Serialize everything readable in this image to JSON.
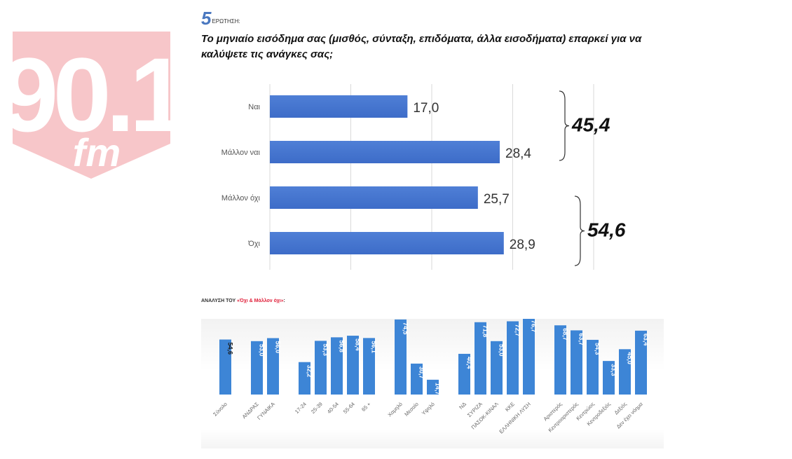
{
  "logo": {
    "number": "90.1",
    "suffix": "fm",
    "color": "#f7c6c9"
  },
  "question": {
    "number": "5",
    "label": "ΕΡΩΤΗΣΗ:",
    "title": "Το μηνιαίο εισόδημα σας (μισθός, σύνταξη, επιδόματα, άλλα εισοδήματα) επαρκεί για να καλύψετε τις ανάγκες σας;"
  },
  "subtitle": {
    "prefix": "ΑΝΑΛΥΣΗ ΤΟΥ ",
    "highlight": "«Όχι & Μάλλον όχι»",
    "suffix": ":"
  },
  "chart_data": [
    {
      "type": "bar",
      "orientation": "horizontal",
      "title": "Το μηνιαίο εισόδημα σας επαρκεί για να καλύψετε τις ανάγκες σας;",
      "categories": [
        "Ναι",
        "Μάλλον ναι",
        "Μάλλον όχι",
        "Όχι"
      ],
      "values": [
        17.0,
        28.4,
        25.7,
        28.9
      ],
      "value_labels": [
        "17,0",
        "28,4",
        "25,7",
        "28,9"
      ],
      "xlim": [
        0,
        40
      ],
      "gridlines": [
        0,
        10,
        20,
        30,
        40
      ],
      "grid": true,
      "bar_color": "#3d6cc8",
      "groups": [
        {
          "members": [
            "Ναι",
            "Μάλλον ναι"
          ],
          "total": 45.4,
          "label": "45,4"
        },
        {
          "members": [
            "Μάλλον όχι",
            "Όχι"
          ],
          "total": 54.6,
          "label": "54,6"
        }
      ]
    },
    {
      "type": "bar",
      "orientation": "vertical",
      "title": "ΑΝΑΛΥΣΗ ΤΟΥ «Όχι & Μάλλον όχι»",
      "ylim": [
        0,
        80
      ],
      "bar_color": "#3d85d6",
      "groups": [
        {
          "categories": [
            "Σύνολο"
          ],
          "values": [
            54.6
          ],
          "labels": [
            "54,6"
          ]
        },
        {
          "categories": [
            "ΑΝΔΡΑΣ",
            "ΓΥΝΑΙΚΑ"
          ],
          "values": [
            53.0,
            56.0
          ],
          "labels": [
            "53,0",
            "56,0"
          ]
        },
        {
          "categories": [
            "17-24",
            "25-39",
            "40-54",
            "55-64",
            "65 +"
          ],
          "values": [
            32.2,
            53.3,
            56.8,
            58.4,
            56.1
          ],
          "labels": [
            "32,2",
            "53,3",
            "56,8",
            "58,4",
            "56,1"
          ]
        },
        {
          "categories": [
            "Χαμηλό",
            "Μεσαίο",
            "Υψηλό"
          ],
          "values": [
            74.5,
            30.7,
            14.7
          ],
          "labels": [
            "74,5",
            "30,7",
            "14,7"
          ]
        },
        {
          "categories": [
            "ΝΔ",
            "ΣΥΡΙΖΑ",
            "ΠΑΣΟΚ-ΚΙΝΑΛ",
            "ΚΚΕ",
            "ΕΛΛΗΝΙΚΗ ΛΥΣΗ"
          ],
          "values": [
            40.4,
            71.8,
            53.0,
            72.7,
            76.7
          ],
          "labels": [
            "40,4",
            "71,8",
            "53,0",
            "72,7",
            "76,7"
          ]
        },
        {
          "categories": [
            "Αριστερός",
            "Κεντροαριστερός",
            "Κεντρώος",
            "Κεντροδεξιός",
            "Δεξιός",
            "Δεν έχει νόημα"
          ],
          "values": [
            68.7,
            63.7,
            54.3,
            33.3,
            45.0,
            63.4
          ],
          "labels": [
            "68,7",
            "63,7",
            "54,3",
            "33,3",
            "45,0",
            "63,4"
          ]
        }
      ]
    }
  ]
}
